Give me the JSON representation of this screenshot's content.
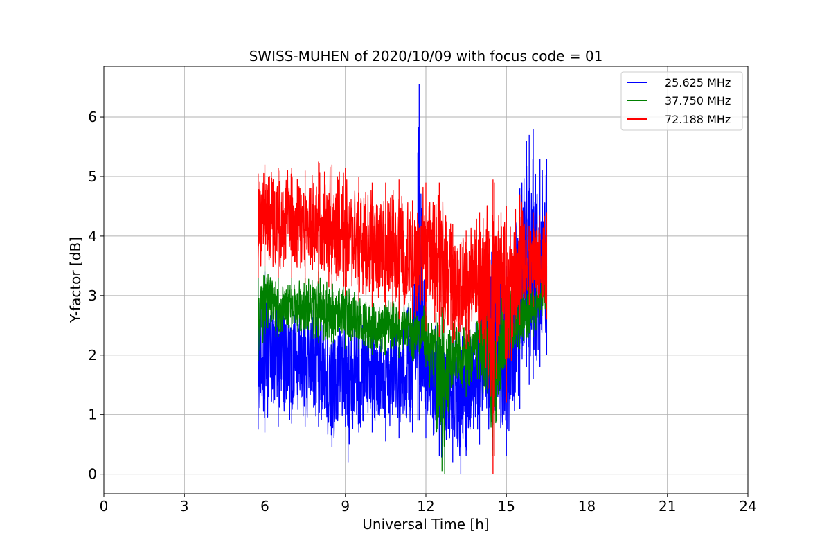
{
  "chart_data": {
    "type": "line",
    "title": "SWISS-MUHEN of 2020/10/09 with focus code = 01",
    "xlabel": "Universal Time [h]",
    "ylabel": "Y-factor [dB]",
    "xlim": [
      0,
      24
    ],
    "ylim": [
      -0.33,
      6.85
    ],
    "xticks": [
      0,
      3,
      6,
      9,
      12,
      15,
      18,
      21,
      24
    ],
    "yticks": [
      0,
      1,
      2,
      3,
      4,
      5,
      6
    ],
    "grid": true,
    "legend_position": "top-right",
    "series": [
      {
        "name": "25.625 MHz",
        "color": "#0000ff",
        "x": [
          5.75,
          6.0,
          6.5,
          7.0,
          7.5,
          8.0,
          8.5,
          9.0,
          9.1,
          9.5,
          10.0,
          10.5,
          11.0,
          11.5,
          11.7,
          11.75,
          12.0,
          12.5,
          12.7,
          13.0,
          13.3,
          13.5,
          14.0,
          14.5,
          15.0,
          15.5,
          15.75,
          15.85,
          16.0,
          16.25,
          16.5
        ],
        "upper": [
          3.3,
          3.4,
          3.0,
          2.8,
          2.9,
          3.0,
          2.7,
          2.7,
          2.6,
          2.8,
          2.6,
          2.5,
          2.8,
          2.9,
          5.4,
          6.55,
          2.9,
          2.5,
          2.3,
          2.4,
          2.5,
          2.6,
          3.0,
          4.3,
          3.5,
          4.8,
          5.6,
          5.7,
          5.8,
          5.3,
          5.3
        ],
        "lower": [
          0.75,
          0.7,
          0.8,
          0.85,
          0.8,
          0.8,
          0.45,
          0.8,
          0.2,
          0.7,
          0.7,
          0.55,
          0.6,
          0.7,
          0.9,
          0.9,
          0.6,
          0.3,
          0.15,
          0.2,
          0.0,
          0.3,
          0.5,
          0.4,
          0.3,
          1.1,
          1.8,
          1.5,
          1.6,
          1.8,
          2.0
        ]
      },
      {
        "name": "37.750 MHz",
        "color": "#008000",
        "x": [
          5.75,
          6.0,
          6.5,
          7.0,
          7.5,
          8.0,
          8.5,
          9.0,
          9.5,
          10.0,
          10.5,
          11.0,
          11.5,
          12.0,
          12.6,
          12.7,
          13.0,
          13.5,
          14.0,
          14.5,
          14.8,
          15.0,
          15.5,
          16.0,
          16.5
        ],
        "upper": [
          3.3,
          3.5,
          3.3,
          3.3,
          3.3,
          3.4,
          3.2,
          3.3,
          3.0,
          3.0,
          3.0,
          2.9,
          3.0,
          2.8,
          2.8,
          2.6,
          2.7,
          2.6,
          2.9,
          3.0,
          3.1,
          3.2,
          3.2,
          3.2,
          3.5
        ],
        "lower": [
          1.9,
          2.2,
          2.3,
          2.4,
          2.3,
          2.2,
          2.1,
          2.1,
          2.1,
          2.0,
          2.0,
          1.95,
          1.9,
          1.8,
          0.05,
          0.0,
          1.5,
          1.3,
          1.6,
          0.3,
          1.3,
          1.6,
          2.1,
          2.3,
          2.6
        ]
      },
      {
        "name": "72.188 MHz",
        "color": "#ff0000",
        "x": [
          5.75,
          6.0,
          6.5,
          7.0,
          7.5,
          8.0,
          8.5,
          9.0,
          9.5,
          10.0,
          10.5,
          11.0,
          11.5,
          12.0,
          12.5,
          13.0,
          13.5,
          14.0,
          14.5,
          14.55,
          14.8,
          15.0,
          15.5,
          16.0,
          16.5
        ],
        "upper": [
          5.05,
          5.2,
          5.15,
          5.15,
          5.1,
          5.25,
          5.2,
          5.15,
          5.0,
          4.9,
          4.9,
          4.95,
          4.6,
          4.9,
          4.9,
          4.2,
          4.1,
          4.4,
          4.95,
          4.9,
          4.4,
          4.5,
          4.7,
          4.4,
          4.4
        ],
        "lower": [
          3.3,
          3.5,
          3.3,
          3.3,
          3.2,
          3.2,
          3.1,
          3.0,
          2.9,
          2.8,
          2.8,
          2.6,
          2.6,
          2.4,
          2.3,
          2.2,
          2.1,
          2.2,
          0.0,
          0.3,
          2.5,
          1.2,
          2.5,
          2.8,
          2.6
        ]
      }
    ]
  }
}
